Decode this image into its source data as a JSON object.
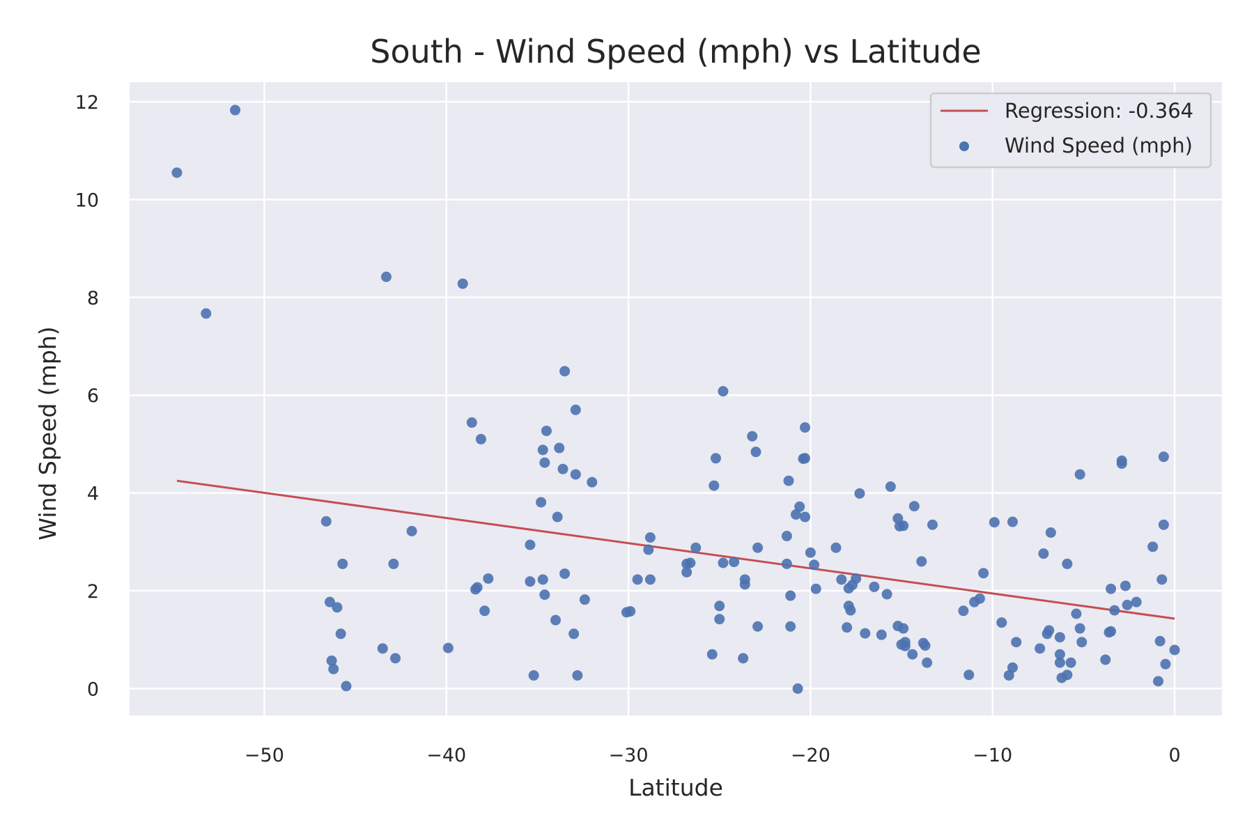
{
  "chart_data": {
    "type": "scatter",
    "title": "South - Wind Speed (mph) vs Latitude",
    "xlabel": "Latitude",
    "ylabel": "Wind Speed (mph)",
    "xlim": [
      -57.4,
      2.6
    ],
    "ylim": [
      -0.55,
      12.4
    ],
    "x_ticks": [
      -50,
      -40,
      -30,
      -20,
      -10,
      0
    ],
    "x_tick_labels": [
      "−50",
      "−40",
      "−30",
      "−20",
      "−10",
      "0"
    ],
    "y_ticks": [
      0,
      2,
      4,
      6,
      8,
      10,
      12
    ],
    "y_tick_labels": [
      "0",
      "2",
      "4",
      "6",
      "8",
      "10",
      "12"
    ],
    "grid": true,
    "legend_position": "top-right",
    "colors": {
      "points": "#4c72b0",
      "regression": "#c44e52",
      "plot_background": "#eaeaf2",
      "grid": "#ffffff"
    },
    "series": [
      {
        "name": "Regression: -0.364",
        "type": "line",
        "x": [
          -54.8,
          0.0
        ],
        "y": [
          4.25,
          1.43
        ]
      },
      {
        "name": "Wind Speed (mph)",
        "type": "scatter",
        "points": [
          [
            -54.8,
            10.55
          ],
          [
            -53.2,
            7.67
          ],
          [
            -51.6,
            11.83
          ],
          [
            -46.6,
            3.42
          ],
          [
            -46.4,
            1.77
          ],
          [
            -46.3,
            0.57
          ],
          [
            -46.2,
            0.4
          ],
          [
            -46.0,
            1.66
          ],
          [
            -45.8,
            1.12
          ],
          [
            -45.7,
            2.55
          ],
          [
            -45.5,
            0.05
          ],
          [
            -43.5,
            0.82
          ],
          [
            -43.3,
            8.42
          ],
          [
            -42.9,
            2.55
          ],
          [
            -42.8,
            0.62
          ],
          [
            -41.9,
            3.22
          ],
          [
            -39.9,
            0.83
          ],
          [
            -39.1,
            8.28
          ],
          [
            -38.6,
            5.44
          ],
          [
            -38.4,
            2.03
          ],
          [
            -38.3,
            2.07
          ],
          [
            -38.1,
            5.1
          ],
          [
            -37.9,
            1.59
          ],
          [
            -37.7,
            2.25
          ],
          [
            -35.4,
            2.94
          ],
          [
            -35.4,
            2.19
          ],
          [
            -35.2,
            0.27
          ],
          [
            -34.8,
            3.81
          ],
          [
            -34.7,
            2.23
          ],
          [
            -34.7,
            4.88
          ],
          [
            -34.6,
            1.92
          ],
          [
            -34.6,
            4.62
          ],
          [
            -34.5,
            5.27
          ],
          [
            -34.0,
            1.4
          ],
          [
            -33.9,
            3.51
          ],
          [
            -33.8,
            4.92
          ],
          [
            -33.6,
            4.49
          ],
          [
            -33.5,
            2.35
          ],
          [
            -33.5,
            6.49
          ],
          [
            -33.0,
            1.12
          ],
          [
            -32.9,
            4.38
          ],
          [
            -32.9,
            5.7
          ],
          [
            -32.8,
            0.27
          ],
          [
            -32.4,
            1.82
          ],
          [
            -32.0,
            4.22
          ],
          [
            -30.1,
            1.56
          ],
          [
            -29.9,
            1.58
          ],
          [
            -29.5,
            2.23
          ],
          [
            -28.9,
            2.84
          ],
          [
            -28.8,
            3.09
          ],
          [
            -28.8,
            2.23
          ],
          [
            -26.8,
            2.55
          ],
          [
            -26.8,
            2.38
          ],
          [
            -26.6,
            2.57
          ],
          [
            -26.3,
            2.88
          ],
          [
            -25.4,
            0.7
          ],
          [
            -25.3,
            4.15
          ],
          [
            -25.2,
            4.71
          ],
          [
            -25.0,
            1.69
          ],
          [
            -25.0,
            1.42
          ],
          [
            -24.8,
            6.08
          ],
          [
            -24.8,
            2.57
          ],
          [
            -24.2,
            2.59
          ],
          [
            -23.7,
            0.62
          ],
          [
            -23.6,
            2.23
          ],
          [
            -23.6,
            2.13
          ],
          [
            -23.2,
            5.16
          ],
          [
            -23.0,
            4.84
          ],
          [
            -22.9,
            2.88
          ],
          [
            -22.9,
            1.27
          ],
          [
            -21.3,
            3.12
          ],
          [
            -21.3,
            2.55
          ],
          [
            -21.2,
            4.25
          ],
          [
            -21.1,
            1.27
          ],
          [
            -21.1,
            1.9
          ],
          [
            -20.8,
            3.56
          ],
          [
            -20.7,
            0.0
          ],
          [
            -20.6,
            3.72
          ],
          [
            -20.4,
            4.7
          ],
          [
            -20.3,
            4.71
          ],
          [
            -20.3,
            5.34
          ],
          [
            -20.3,
            3.51
          ],
          [
            -20.0,
            2.78
          ],
          [
            -19.8,
            2.53
          ],
          [
            -19.7,
            2.04
          ],
          [
            -18.6,
            2.88
          ],
          [
            -18.3,
            2.23
          ],
          [
            -18.0,
            1.25
          ],
          [
            -17.9,
            1.69
          ],
          [
            -17.9,
            2.05
          ],
          [
            -17.8,
            1.6
          ],
          [
            -17.7,
            2.12
          ],
          [
            -17.5,
            2.25
          ],
          [
            -17.3,
            3.99
          ],
          [
            -17.0,
            1.13
          ],
          [
            -16.5,
            2.08
          ],
          [
            -16.1,
            1.1
          ],
          [
            -15.8,
            1.93
          ],
          [
            -15.6,
            4.13
          ],
          [
            -15.2,
            3.48
          ],
          [
            -15.2,
            1.28
          ],
          [
            -15.1,
            3.32
          ],
          [
            -15.0,
            0.9
          ],
          [
            -14.9,
            1.23
          ],
          [
            -14.9,
            3.33
          ],
          [
            -14.8,
            0.95
          ],
          [
            -14.8,
            0.87
          ],
          [
            -14.4,
            0.7
          ],
          [
            -14.3,
            3.73
          ],
          [
            -13.9,
            2.6
          ],
          [
            -13.8,
            0.93
          ],
          [
            -13.7,
            0.88
          ],
          [
            -13.6,
            0.53
          ],
          [
            -13.3,
            3.35
          ],
          [
            -11.6,
            1.59
          ],
          [
            -11.3,
            0.28
          ],
          [
            -11.0,
            1.77
          ],
          [
            -10.7,
            1.84
          ],
          [
            -10.5,
            2.36
          ],
          [
            -9.9,
            3.4
          ],
          [
            -9.5,
            1.35
          ],
          [
            -9.1,
            0.27
          ],
          [
            -8.9,
            0.43
          ],
          [
            -8.9,
            3.41
          ],
          [
            -8.7,
            0.95
          ],
          [
            -7.4,
            0.82
          ],
          [
            -7.2,
            2.76
          ],
          [
            -7.0,
            1.12
          ],
          [
            -6.9,
            1.19
          ],
          [
            -6.8,
            3.19
          ],
          [
            -6.3,
            1.05
          ],
          [
            -6.3,
            0.7
          ],
          [
            -6.3,
            0.53
          ],
          [
            -6.2,
            0.22
          ],
          [
            -5.9,
            0.28
          ],
          [
            -5.9,
            2.55
          ],
          [
            -5.7,
            0.53
          ],
          [
            -5.4,
            1.53
          ],
          [
            -5.2,
            4.38
          ],
          [
            -5.2,
            1.23
          ],
          [
            -5.1,
            0.95
          ],
          [
            -3.8,
            0.59
          ],
          [
            -3.6,
            1.15
          ],
          [
            -3.5,
            2.04
          ],
          [
            -3.5,
            1.17
          ],
          [
            -3.3,
            1.6
          ],
          [
            -2.9,
            4.6
          ],
          [
            -2.9,
            4.66
          ],
          [
            -2.7,
            2.1
          ],
          [
            -2.6,
            1.71
          ],
          [
            -2.1,
            1.77
          ],
          [
            -1.2,
            2.9
          ],
          [
            -0.9,
            0.15
          ],
          [
            -0.8,
            0.97
          ],
          [
            -0.7,
            2.23
          ],
          [
            -0.6,
            3.35
          ],
          [
            -0.6,
            4.74
          ],
          [
            -0.5,
            0.5
          ],
          [
            0.0,
            0.79
          ]
        ]
      }
    ]
  }
}
